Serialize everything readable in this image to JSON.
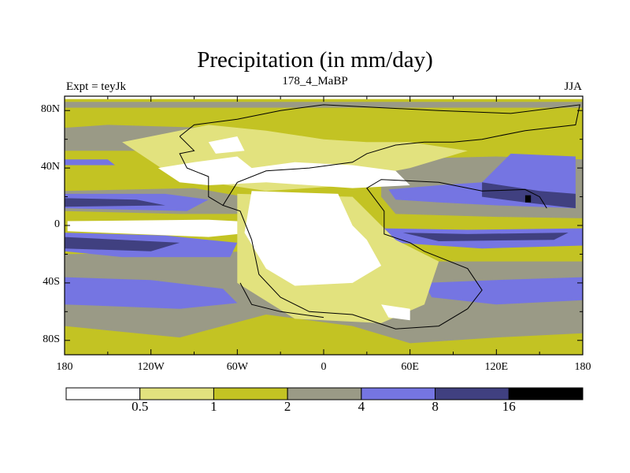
{
  "title": "Precipitation (in mm/day)",
  "subtitle": "178_4_MaBP",
  "left_label": "Expt = teyJk",
  "right_label": "JJA",
  "y_ticks": [
    {
      "label": "80N",
      "lat": 80
    },
    {
      "label": "40N",
      "lat": 40
    },
    {
      "label": "0",
      "lat": 0
    },
    {
      "label": "40S",
      "lat": -40
    },
    {
      "label": "80S",
      "lat": -80
    }
  ],
  "x_ticks": [
    {
      "label": "180",
      "lon": -180
    },
    {
      "label": "120W",
      "lon": -120
    },
    {
      "label": "60W",
      "lon": -60
    },
    {
      "label": "0",
      "lon": 0
    },
    {
      "label": "60E",
      "lon": 60
    },
    {
      "label": "120E",
      "lon": 120
    },
    {
      "label": "180",
      "lon": 180
    }
  ],
  "colorbar": {
    "colors": [
      "#ffffff",
      "#e2e27e",
      "#c3c323",
      "#9a9a86",
      "#7575e2",
      "#404080",
      "#000000"
    ],
    "labels": [
      "0.5",
      "1",
      "2",
      "4",
      "8",
      "16"
    ]
  },
  "colors": {
    "white": "#ffffff",
    "lightyellow": "#e2e27e",
    "olive": "#c3c323",
    "gray": "#9a9a86",
    "blue": "#7575e2",
    "darkblue": "#404080",
    "black": "#000000",
    "coast": "#000000"
  },
  "regions": [
    {
      "name": "base-olive",
      "color": "olive",
      "pts": [
        [
          -180,
          88
        ],
        [
          180,
          88
        ],
        [
          180,
          -90
        ],
        [
          -180,
          -90
        ]
      ]
    },
    {
      "name": "south-gray",
      "color": "gray",
      "pts": [
        [
          -180,
          -20
        ],
        [
          -40,
          -18
        ],
        [
          -20,
          -30
        ],
        [
          30,
          -32
        ],
        [
          80,
          -25
        ],
        [
          180,
          -25
        ],
        [
          180,
          -75
        ],
        [
          120,
          -78
        ],
        [
          60,
          -82
        ],
        [
          20,
          -70
        ],
        [
          -40,
          -62
        ],
        [
          -100,
          -78
        ],
        [
          -180,
          -70
        ]
      ]
    },
    {
      "name": "south-blue-west",
      "color": "blue",
      "pts": [
        [
          -180,
          -36
        ],
        [
          -120,
          -38
        ],
        [
          -70,
          -44
        ],
        [
          -60,
          -54
        ],
        [
          -100,
          -58
        ],
        [
          -180,
          -55
        ]
      ]
    },
    {
      "name": "south-blue-east",
      "color": "blue",
      "pts": [
        [
          70,
          -40
        ],
        [
          120,
          -38
        ],
        [
          180,
          -36
        ],
        [
          180,
          -52
        ],
        [
          120,
          -55
        ],
        [
          75,
          -50
        ]
      ]
    },
    {
      "name": "south-tropic-blue",
      "color": "blue",
      "pts": [
        [
          -180,
          -5
        ],
        [
          -110,
          -7
        ],
        [
          -60,
          -12
        ],
        [
          -65,
          -22
        ],
        [
          -140,
          -22
        ],
        [
          -180,
          -18
        ]
      ]
    },
    {
      "name": "south-tropic-darkblue",
      "color": "darkblue",
      "pts": [
        [
          -180,
          -8
        ],
        [
          -140,
          -10
        ],
        [
          -100,
          -12
        ],
        [
          -120,
          -18
        ],
        [
          -180,
          -16
        ]
      ]
    },
    {
      "name": "indian-blue",
      "color": "blue",
      "pts": [
        [
          40,
          -2
        ],
        [
          100,
          -3
        ],
        [
          180,
          -2
        ],
        [
          180,
          -14
        ],
        [
          110,
          -16
        ],
        [
          50,
          -12
        ]
      ]
    },
    {
      "name": "indian-darkblue",
      "color": "darkblue",
      "pts": [
        [
          55,
          -5
        ],
        [
          100,
          -6
        ],
        [
          170,
          -5
        ],
        [
          160,
          -10
        ],
        [
          80,
          -11
        ]
      ]
    },
    {
      "name": "equator-white",
      "color": "white",
      "pts": [
        [
          -178,
          3
        ],
        [
          -80,
          4
        ],
        [
          -40,
          2
        ],
        [
          -40,
          -4
        ],
        [
          -80,
          -8
        ],
        [
          -178,
          -4
        ]
      ]
    },
    {
      "name": "tropic-north-gray",
      "color": "gray",
      "pts": [
        [
          -180,
          24
        ],
        [
          -90,
          26
        ],
        [
          -55,
          20
        ],
        [
          -55,
          8
        ],
        [
          -100,
          8
        ],
        [
          -180,
          10
        ]
      ]
    },
    {
      "name": "tropic-north-blue",
      "color": "blue",
      "pts": [
        [
          -180,
          22
        ],
        [
          -110,
          22
        ],
        [
          -80,
          18
        ],
        [
          -95,
          10
        ],
        [
          -180,
          12
        ]
      ]
    },
    {
      "name": "tropic-north-darkblue",
      "color": "darkblue",
      "pts": [
        [
          -180,
          19
        ],
        [
          -130,
          18
        ],
        [
          -110,
          14
        ],
        [
          -180,
          13
        ]
      ]
    },
    {
      "name": "asia-gray",
      "color": "gray",
      "pts": [
        [
          40,
          46
        ],
        [
          120,
          48
        ],
        [
          180,
          46
        ],
        [
          180,
          5
        ],
        [
          120,
          6
        ],
        [
          50,
          8
        ],
        [
          40,
          20
        ]
      ]
    },
    {
      "name": "asia-blue",
      "color": "blue",
      "pts": [
        [
          45,
          25
        ],
        [
          80,
          28
        ],
        [
          110,
          30
        ],
        [
          130,
          50
        ],
        [
          175,
          48
        ],
        [
          175,
          12
        ],
        [
          120,
          14
        ],
        [
          80,
          16
        ],
        [
          50,
          18
        ]
      ]
    },
    {
      "name": "asia-darkblue",
      "color": "darkblue",
      "pts": [
        [
          110,
          30
        ],
        [
          150,
          24
        ],
        [
          175,
          22
        ],
        [
          175,
          12
        ],
        [
          140,
          16
        ],
        [
          110,
          20
        ]
      ]
    },
    {
      "name": "asia-black",
      "color": "black",
      "pts": [
        [
          140,
          21
        ],
        [
          144,
          21
        ],
        [
          144,
          16
        ],
        [
          140,
          16
        ]
      ]
    },
    {
      "name": "north-gray",
      "color": "gray",
      "pts": [
        [
          -150,
          70
        ],
        [
          -80,
          68
        ],
        [
          -70,
          60
        ],
        [
          -120,
          52
        ],
        [
          -180,
          52
        ],
        [
          -180,
          68
        ]
      ]
    },
    {
      "name": "north-blue",
      "color": "blue",
      "pts": [
        [
          -180,
          46
        ],
        [
          -150,
          46
        ],
        [
          -145,
          42
        ],
        [
          -180,
          42
        ]
      ]
    },
    {
      "name": "arctic-gray",
      "color": "gray",
      "pts": [
        [
          -180,
          86
        ],
        [
          180,
          86
        ],
        [
          180,
          82
        ],
        [
          -180,
          82
        ]
      ]
    },
    {
      "name": "pangea-lightyellow-n",
      "color": "lightyellow",
      "pts": [
        [
          -140,
          58
        ],
        [
          -80,
          70
        ],
        [
          -40,
          66
        ],
        [
          0,
          60
        ],
        [
          30,
          58
        ],
        [
          60,
          58
        ],
        [
          100,
          52
        ],
        [
          60,
          40
        ],
        [
          40,
          36
        ],
        [
          20,
          28
        ],
        [
          -40,
          24
        ],
        [
          -80,
          30
        ],
        [
          -110,
          38
        ]
      ]
    },
    {
      "name": "pangea-lightyellow-s",
      "color": "lightyellow",
      "pts": [
        [
          -60,
          22
        ],
        [
          20,
          20
        ],
        [
          50,
          -10
        ],
        [
          80,
          -25
        ],
        [
          70,
          -55
        ],
        [
          40,
          -68
        ],
        [
          -20,
          -65
        ],
        [
          -60,
          -40
        ]
      ]
    },
    {
      "name": "pangea-white-n",
      "color": "white",
      "pts": [
        [
          -115,
          40
        ],
        [
          -90,
          44
        ],
        [
          -60,
          48
        ],
        [
          -50,
          40
        ],
        [
          -20,
          44
        ],
        [
          20,
          42
        ],
        [
          50,
          38
        ],
        [
          60,
          28
        ],
        [
          20,
          26
        ],
        [
          -40,
          30
        ],
        [
          -80,
          28
        ],
        [
          -100,
          30
        ]
      ]
    },
    {
      "name": "pangea-white-center",
      "color": "white",
      "pts": [
        [
          -50,
          24
        ],
        [
          10,
          22
        ],
        [
          20,
          0
        ],
        [
          30,
          -10
        ],
        [
          40,
          -28
        ],
        [
          20,
          -40
        ],
        [
          -20,
          -42
        ],
        [
          -40,
          -30
        ],
        [
          -55,
          -5
        ]
      ]
    },
    {
      "name": "pangea-white-south",
      "color": "white",
      "pts": [
        [
          40,
          -55
        ],
        [
          60,
          -58
        ],
        [
          60,
          -66
        ],
        [
          45,
          -64
        ]
      ]
    },
    {
      "name": "nw-white",
      "color": "white",
      "pts": [
        [
          -80,
          58
        ],
        [
          -60,
          62
        ],
        [
          -55,
          52
        ],
        [
          -75,
          50
        ]
      ]
    }
  ],
  "coastlines": [
    {
      "name": "pangea-north-coast",
      "pts": [
        [
          -100,
          62
        ],
        [
          -90,
          70
        ],
        [
          -60,
          74
        ],
        [
          -30,
          80
        ],
        [
          0,
          84
        ],
        [
          40,
          82
        ],
        [
          80,
          80
        ],
        [
          130,
          78
        ],
        [
          178,
          84
        ],
        [
          175,
          70
        ],
        [
          140,
          66
        ],
        [
          120,
          62
        ],
        [
          110,
          60
        ],
        [
          90,
          58
        ],
        [
          70,
          58
        ],
        [
          50,
          56
        ],
        [
          30,
          50
        ],
        [
          20,
          44
        ],
        [
          -10,
          40
        ],
        [
          -40,
          38
        ],
        [
          -60,
          30
        ],
        [
          -70,
          14
        ],
        [
          -58,
          10
        ],
        [
          -50,
          -10
        ],
        [
          -45,
          -34
        ],
        [
          -30,
          -50
        ],
        [
          -10,
          -60
        ],
        [
          20,
          -62
        ],
        [
          50,
          -72
        ],
        [
          80,
          -70
        ],
        [
          100,
          -58
        ],
        [
          110,
          -45
        ],
        [
          100,
          -30
        ],
        [
          70,
          -18
        ],
        [
          60,
          -12
        ],
        [
          42,
          -6
        ],
        [
          42,
          10
        ],
        [
          30,
          26
        ],
        [
          40,
          32
        ],
        [
          80,
          30
        ],
        [
          110,
          24
        ],
        [
          140,
          25
        ],
        [
          150,
          20
        ],
        [
          155,
          12
        ]
      ]
    },
    {
      "name": "western-coast",
      "pts": [
        [
          -100,
          62
        ],
        [
          -90,
          52
        ],
        [
          -100,
          50
        ],
        [
          -95,
          40
        ],
        [
          -80,
          34
        ],
        [
          -80,
          20
        ],
        [
          -70,
          14
        ]
      ]
    },
    {
      "name": "south-coast",
      "pts": [
        [
          -58,
          -40
        ],
        [
          -50,
          -55
        ],
        [
          -30,
          -60
        ],
        [
          0,
          -64
        ]
      ]
    }
  ]
}
